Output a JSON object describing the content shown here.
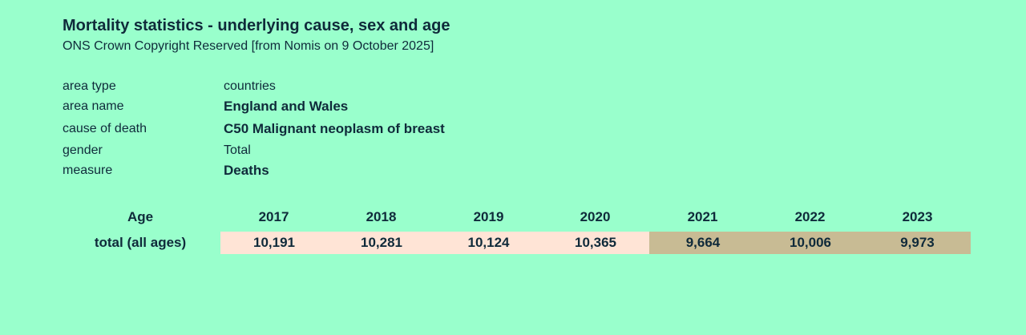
{
  "title": "Mortality statistics - underlying cause, sex and age",
  "subtitle": "ONS Crown Copyright Reserved [from Nomis on 9 October 2025]",
  "meta": [
    {
      "label": "area type",
      "value": "countries"
    },
    {
      "label": "area name",
      "value": "England and Wales"
    },
    {
      "label": "cause of death",
      "value": "C50 Malignant neoplasm of breast"
    },
    {
      "label": "gender",
      "value": "Total"
    },
    {
      "label": "measure",
      "value": "Deaths"
    }
  ],
  "table": {
    "row_header": "Age",
    "years": [
      "2017",
      "2018",
      "2019",
      "2020",
      "2021",
      "2022",
      "2023"
    ],
    "row_label": "total (all ages)",
    "values": [
      "10,191",
      "10,281",
      "10,124",
      "10,365",
      "9,664",
      "10,006",
      "9,973"
    ]
  },
  "colors": {
    "background": "#99ffcc",
    "text": "#0f2a3a",
    "cell_pre_2021": "#ffe4d6",
    "cell_2021_on": "#c8bb94"
  }
}
